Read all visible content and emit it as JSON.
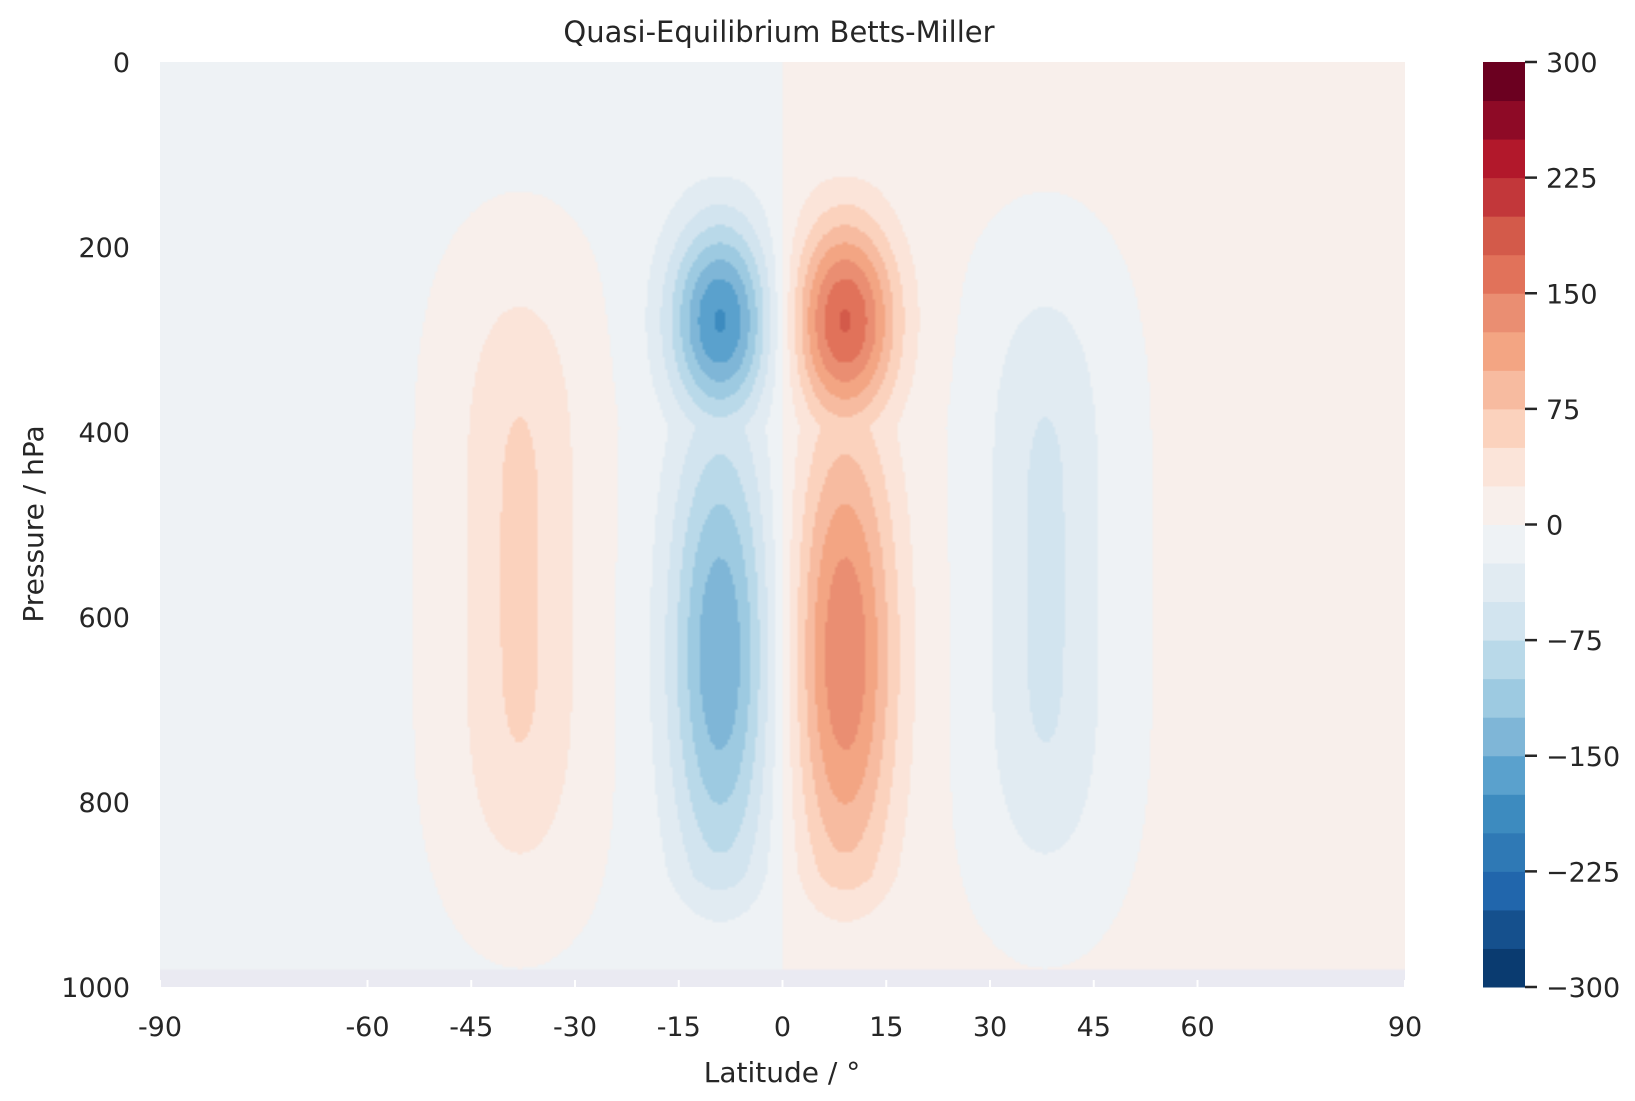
{
  "chart_data": {
    "type": "contourf",
    "title": "Quasi-Equilibrium Betts-Miller",
    "xlabel": "Latitude / °",
    "ylabel": "Pressure / hPa",
    "xlim": [
      -90,
      90
    ],
    "ylim": [
      1000,
      0
    ],
    "y_inverted": true,
    "xticks": [
      -90,
      -60,
      -45,
      -30,
      -15,
      0,
      15,
      30,
      45,
      60,
      90
    ],
    "xtick_labels": [
      "-90",
      "-60",
      "-45",
      "-30",
      "-15",
      "0",
      "15",
      "30",
      "45",
      "60",
      "90"
    ],
    "yticks": [
      0,
      200,
      400,
      600,
      800,
      1000
    ],
    "ytick_labels": [
      "0",
      "200",
      "400",
      "600",
      "800",
      "1000"
    ],
    "grid": false,
    "colormap": "RdBu_r",
    "levels": [
      -300,
      -275,
      -250,
      -225,
      -200,
      -175,
      -150,
      -125,
      -100,
      -75,
      -50,
      -25,
      0,
      25,
      50,
      75,
      100,
      125,
      150,
      175,
      200,
      225,
      250,
      275,
      300
    ],
    "level_colors": [
      "#0a3b70",
      "#15508d",
      "#2166ac",
      "#2f79b5",
      "#3d8bbf",
      "#5aa1cd",
      "#7fb6d7",
      "#9dcae1",
      "#b9d9e9",
      "#d2e4ef",
      "#e1ebf2",
      "#eef2f5",
      "#f8efeb",
      "#fbe4d9",
      "#fbd2bd",
      "#f7bba0",
      "#f3a583",
      "#ea8e72",
      "#e1725a",
      "#d35a4a",
      "#c2373a",
      "#b2182b",
      "#8e0a26",
      "#6b0020"
    ],
    "colorbar_ticks": [
      300,
      225,
      150,
      75,
      0,
      -75,
      -150,
      -225,
      -300
    ],
    "colorbar_tick_labels": [
      "300",
      "225",
      "150",
      "75",
      "0",
      "−75",
      "−150",
      "−225",
      "−300"
    ],
    "field_description_cells": [
      {
        "name": "southern-cell-negative",
        "center_lat": -9,
        "peak": -170,
        "peak_pressure": 280
      },
      {
        "name": "northern-cell-positive",
        "center_lat": 9,
        "peak": 170,
        "peak_pressure": 280
      },
      {
        "name": "southern-ferrel-positive",
        "center_lat": -38,
        "peak": 55,
        "peak_pressure": 550
      },
      {
        "name": "northern-ferrel-negative",
        "center_lat": 38,
        "peak": -55,
        "peak_pressure": 550
      }
    ]
  }
}
